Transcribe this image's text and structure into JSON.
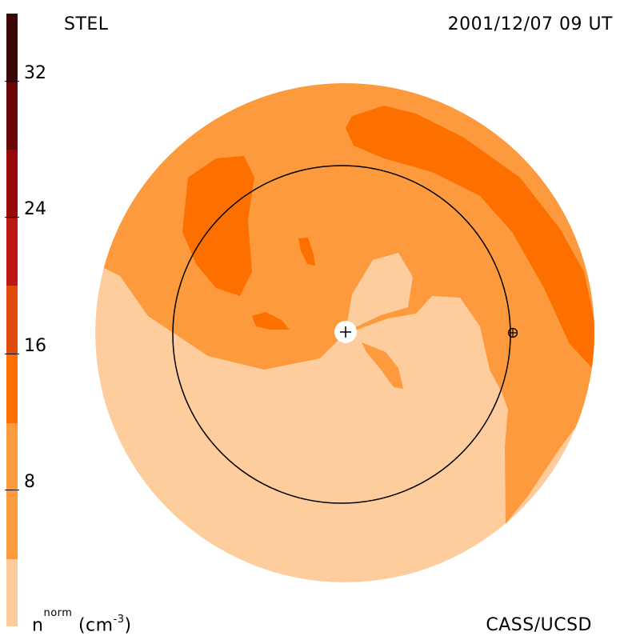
{
  "header": {
    "instrument": "STEL",
    "datetime": "2001/12/07 09 UT"
  },
  "footer": {
    "credit": "CASS/UCSD",
    "quantity": "n",
    "quantity_sup": "norm",
    "unit_prefix": "(cm",
    "unit_exp": "-3",
    "unit_suffix": ")"
  },
  "colorbar": {
    "tick_labels": [
      "32",
      "24",
      "16",
      "8"
    ],
    "tick_values": [
      32,
      24,
      16,
      8
    ],
    "range": [
      0,
      36
    ],
    "colors": [
      "#fdcd9e",
      "#fd9a3d",
      "#fd7000",
      "#e04b0c",
      "#be1812",
      "#980a0a",
      "#6c0707",
      "#3b0606",
      "#1c0404"
    ]
  },
  "map": {
    "outer_color": "#fdcd9e",
    "mid_color": "#fd9a3d",
    "high_color": "#fd7000",
    "orbit_color": "#000000",
    "sun_marker": "plus-icon",
    "earth_marker": "earth-icon"
  }
}
